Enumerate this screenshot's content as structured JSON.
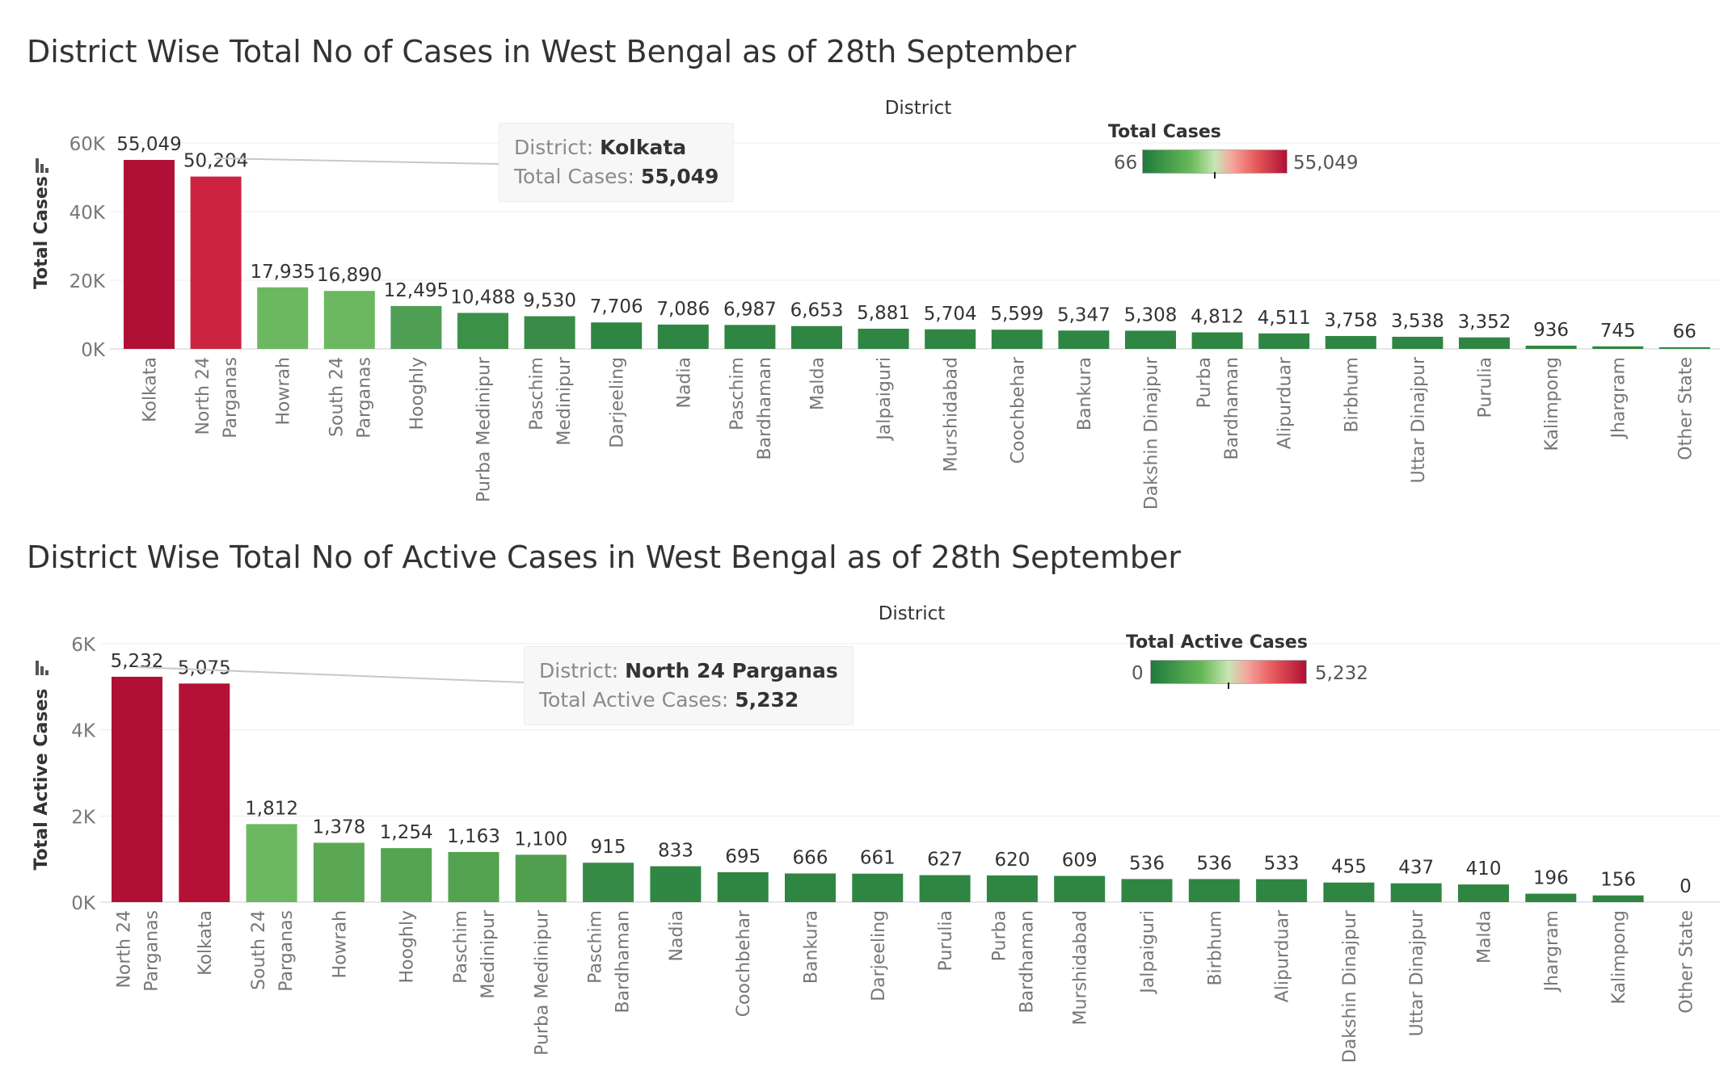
{
  "charts": [
    {
      "title": "District Wise Total No of Cases in West Bengal as of 28th September",
      "header": "District",
      "ylabel": "Total Cases",
      "legend": {
        "title": "Total Cases",
        "min_label": "66",
        "max_label": "55,049"
      },
      "tooltip": {
        "key1": "District:",
        "val1": "Kolkata",
        "key2": "Total Cases:",
        "val2": "55,049"
      },
      "icon": "bar-chart-icon"
    },
    {
      "title": "District Wise Total No of Active Cases in West Bengal as of 28th September",
      "header": "District",
      "ylabel": "Total Active Cases",
      "legend": {
        "title": "Total Active Cases",
        "min_label": "0",
        "max_label": "5,232"
      },
      "tooltip": {
        "key1": "District:",
        "val1": "North 24 Parganas",
        "key2": "Total Active Cases:",
        "val2": "5,232"
      },
      "icon": "bar-chart-icon"
    }
  ],
  "chart_data": [
    {
      "type": "bar",
      "title": "District Wise Total No of Cases in West Bengal as of 28th September",
      "xlabel": "District",
      "ylabel": "Total Cases",
      "ylim": [
        0,
        60000
      ],
      "yticks": [
        "0K",
        "20K",
        "40K",
        "60K"
      ],
      "grid": true,
      "legend_position": "top-right",
      "color_scale": {
        "low": "#1e7a3c",
        "mid": "#67b957",
        "high": "#b01035"
      },
      "categories": [
        [
          "Kolkata"
        ],
        [
          "North 24",
          "Parganas"
        ],
        [
          "Howrah"
        ],
        [
          "South 24",
          "Parganas"
        ],
        [
          "Hooghly"
        ],
        [
          "Purba Medinipur"
        ],
        [
          "Paschim",
          "Medinipur"
        ],
        [
          "Darjeeling"
        ],
        [
          "Nadia"
        ],
        [
          "Paschim",
          "Bardhaman"
        ],
        [
          "Malda"
        ],
        [
          "Jalpaiguri"
        ],
        [
          "Murshidabad"
        ],
        [
          "Coochbehar"
        ],
        [
          "Bankura"
        ],
        [
          "Dakshin Dinajpur"
        ],
        [
          "Purba",
          "Bardhaman"
        ],
        [
          "Alipurduar"
        ],
        [
          "Birbhum"
        ],
        [
          "Uttar Dinajpur"
        ],
        [
          "Purulia"
        ],
        [
          "Kalimpong"
        ],
        [
          "Jhargram"
        ],
        [
          "Other State"
        ]
      ],
      "values": [
        55049,
        50204,
        17935,
        16890,
        12495,
        10488,
        9530,
        7706,
        7086,
        6987,
        6653,
        5881,
        5704,
        5599,
        5347,
        5308,
        4812,
        4511,
        3758,
        3538,
        3352,
        936,
        745,
        66
      ],
      "labels": [
        "55,049",
        "50,204",
        "17,935",
        "16,890",
        "12,495",
        "10,488",
        "9,530",
        "7,706",
        "7,086",
        "6,987",
        "6,653",
        "5,881",
        "5,704",
        "5,599",
        "5,347",
        "5,308",
        "4,812",
        "4,511",
        "3,758",
        "3,538",
        "3,352",
        "936",
        "745",
        "66"
      ],
      "bar_colors": [
        "#b01035",
        "#cc2340",
        "#6cb860",
        "#6cb860",
        "#4e9e53",
        "#3c9149",
        "#3a8b47",
        "#2f8642",
        "#2f8642",
        "#2f8642",
        "#2f8642",
        "#2f8642",
        "#2f8642",
        "#2f8642",
        "#2f8642",
        "#2f8642",
        "#2f8642",
        "#2f8642",
        "#2f8642",
        "#2f8642",
        "#2f8642",
        "#2f8642",
        "#2f8642",
        "#2f8642"
      ]
    },
    {
      "type": "bar",
      "title": "District Wise Total No of Active Cases in West Bengal as of 28th September",
      "xlabel": "District",
      "ylabel": "Total Active Cases",
      "ylim": [
        0,
        6000
      ],
      "yticks": [
        "0K",
        "2K",
        "4K",
        "6K"
      ],
      "grid": true,
      "legend_position": "top-right",
      "color_scale": {
        "low": "#1e7a3c",
        "mid": "#67b957",
        "high": "#b01035"
      },
      "categories": [
        [
          "North 24",
          "Parganas"
        ],
        [
          "Kolkata"
        ],
        [
          "South 24",
          "Parganas"
        ],
        [
          "Howrah"
        ],
        [
          "Hooghly"
        ],
        [
          "Paschim",
          "Medinipur"
        ],
        [
          "Purba Medinipur"
        ],
        [
          "Paschim",
          "Bardhaman"
        ],
        [
          "Nadia"
        ],
        [
          "Coochbehar"
        ],
        [
          "Bankura"
        ],
        [
          "Darjeeling"
        ],
        [
          "Purulia"
        ],
        [
          "Purba",
          "Bardhaman"
        ],
        [
          "Murshidabad"
        ],
        [
          "Jalpaiguri"
        ],
        [
          "Birbhum"
        ],
        [
          "Alipurduar"
        ],
        [
          "Dakshin Dinajpur"
        ],
        [
          "Uttar Dinajpur"
        ],
        [
          "Malda"
        ],
        [
          "Jhargram"
        ],
        [
          "Kalimpong"
        ],
        [
          "Other State"
        ]
      ],
      "values": [
        5232,
        5075,
        1812,
        1378,
        1254,
        1163,
        1100,
        915,
        833,
        695,
        666,
        661,
        627,
        620,
        609,
        536,
        536,
        533,
        455,
        437,
        410,
        196,
        156,
        0
      ],
      "labels": [
        "5,232",
        "5,075",
        "1,812",
        "1,378",
        "1,254",
        "1,163",
        "1,100",
        "915",
        "833",
        "695",
        "666",
        "661",
        "627",
        "620",
        "609",
        "536",
        "536",
        "533",
        "455",
        "437",
        "410",
        "196",
        "156",
        "0"
      ],
      "bar_colors": [
        "#b01035",
        "#b51036",
        "#6cb860",
        "#5aa854",
        "#55a452",
        "#52a250",
        "#4f9f4f",
        "#368c46",
        "#308744",
        "#2f8642",
        "#2f8642",
        "#2f8642",
        "#2f8642",
        "#2f8642",
        "#2f8642",
        "#2f8642",
        "#2f8642",
        "#2f8642",
        "#2f8642",
        "#2f8642",
        "#2f8642",
        "#2f8642",
        "#2f8642",
        "#2f8642"
      ]
    }
  ]
}
